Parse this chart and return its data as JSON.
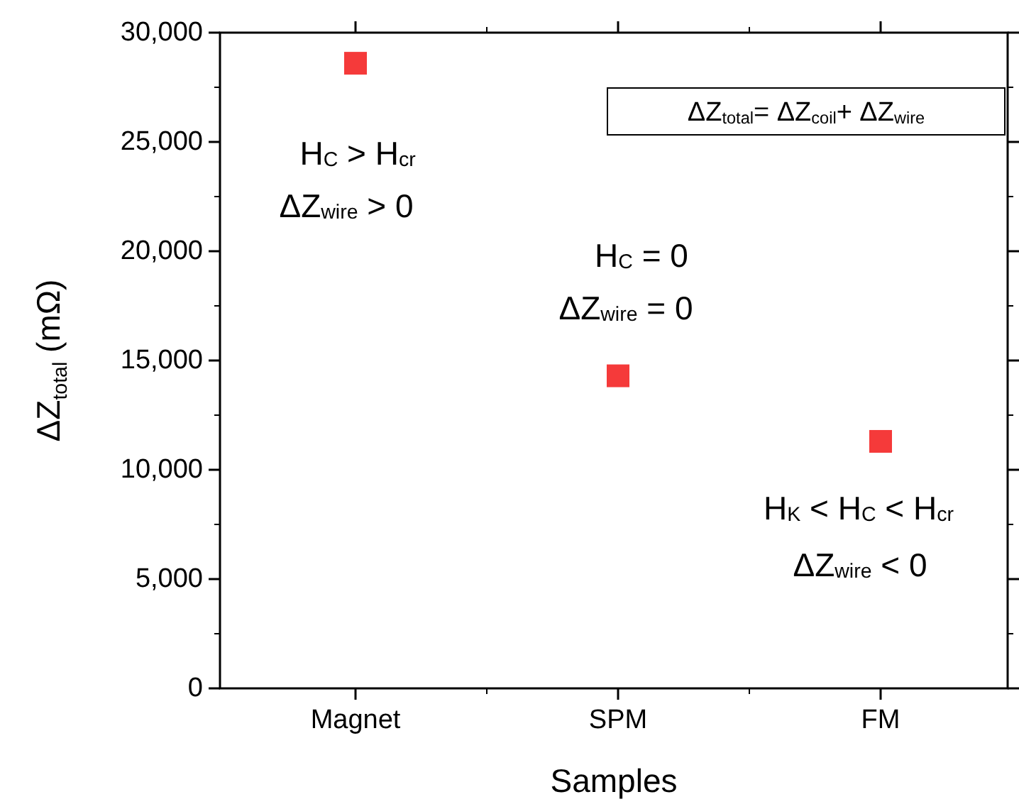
{
  "chart_data": {
    "type": "scatter",
    "xlabel": "Samples",
    "ylabel": "ΔZ$_{total}$ (mΩ)",
    "categories": [
      "Magnet",
      "SPM",
      "FM"
    ],
    "series": [
      {
        "color": "#f53a3a",
        "values": [
          28600,
          14300,
          11300
        ]
      }
    ],
    "marker": "square",
    "ylim": [
      0,
      30000
    ],
    "yticks": [
      {
        "value": 0,
        "label": "0"
      },
      {
        "value": 5000,
        "label": "5,000"
      },
      {
        "value": 10000,
        "label": "10,000"
      },
      {
        "value": 15000,
        "label": "15,000"
      },
      {
        "value": 20000,
        "label": "20,000"
      },
      {
        "value": 25000,
        "label": "25,000"
      },
      {
        "value": 30000,
        "label": "30,000"
      }
    ],
    "annotations": [
      "H$_{C}$ > H$_{cr}$",
      "ΔZ$_{wire}$ > 0",
      "H$_{C}$ = 0",
      "ΔZ$_{wire}$ = 0",
      "H$_{K}$ < H$_{C}$ < H$_{cr}$",
      "ΔZ$_{wire}$ < 0",
      "ΔZ$_{total}$= ΔZ$_{coil}$+ ΔZ$_{wire}$"
    ]
  }
}
